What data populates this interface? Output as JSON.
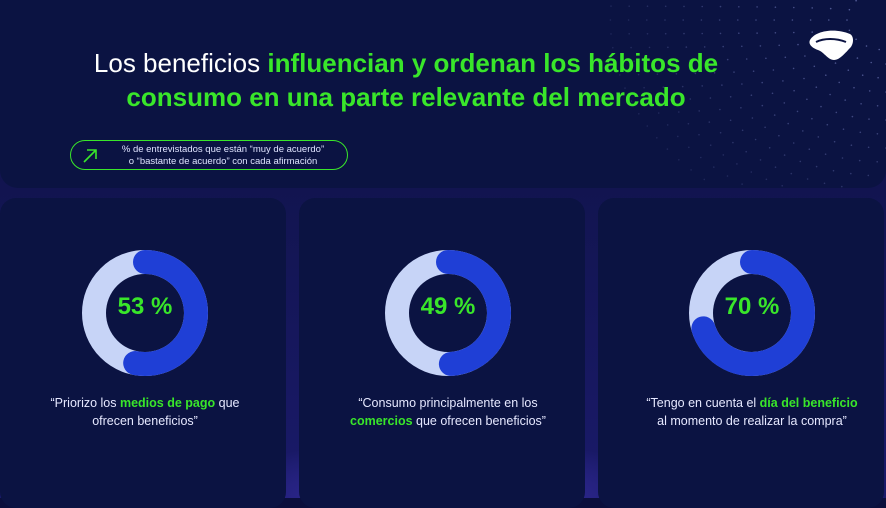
{
  "header": {
    "title_parts": [
      {
        "text": "Los beneficios ",
        "hl": false
      },
      {
        "text": "influencian y ordenan los hábitos de consumo en una parte relevante del mercado",
        "hl": true
      }
    ],
    "title_plain": "Los beneficios ",
    "title_highlight": "influencian y ordenan los hábitos de consumo en una parte relevante del mercado",
    "note_line1": "% de entrevistados que están “muy de acuerdo”",
    "note_line2": "o “bastante de acuerdo”  con cada afirmación"
  },
  "colors": {
    "accent_green": "#39e62a",
    "ring_light": "#c7d4f7",
    "ring_blue": "#1f3fd6",
    "background": "#0b0f3c"
  },
  "chart_data": {
    "type": "pie",
    "variant": "donut",
    "items": [
      {
        "value": 53,
        "label": "53 %",
        "caption_parts": [
          "“Priorizo los ",
          "medios de pago",
          " que ofrecen beneficios”"
        ]
      },
      {
        "value": 49,
        "label": "49 %",
        "caption_parts": [
          "“Consumo principalmente en los ",
          "comercios",
          " que ofrecen beneficios”"
        ]
      },
      {
        "value": 70,
        "label": "70 %",
        "caption_parts": [
          "“Tengo en cuenta el ",
          "día del beneficio",
          " al momento de realizar la compra”"
        ]
      }
    ]
  }
}
